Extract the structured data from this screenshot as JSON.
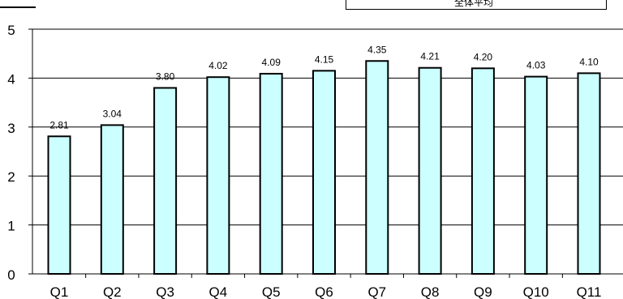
{
  "legend": {
    "label": "全体平均"
  },
  "colors": {
    "bar_fill": "#ccffff",
    "bar_stroke": "#000000",
    "grid": "#000000",
    "axis": "#000000",
    "text": "#000000"
  },
  "chart_data": {
    "type": "bar",
    "categories": [
      "Q1",
      "Q2",
      "Q3",
      "Q4",
      "Q5",
      "Q6",
      "Q7",
      "Q8",
      "Q9",
      "Q10",
      "Q11"
    ],
    "values": [
      2.81,
      3.04,
      3.8,
      4.02,
      4.09,
      4.15,
      4.35,
      4.21,
      4.2,
      4.03,
      4.1
    ],
    "data_labels": [
      "2.81",
      "3.04",
      "3.80",
      "4.02",
      "4.09",
      "4.15",
      "4.35",
      "4.21",
      "4.20",
      "4.03",
      "4.10"
    ],
    "ylim": [
      0,
      5
    ],
    "yticks": [
      "0",
      "1",
      "2",
      "3",
      "4",
      "5"
    ],
    "grid": true
  }
}
